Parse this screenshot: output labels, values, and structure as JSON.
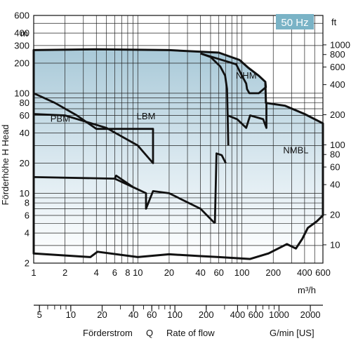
{
  "chart_data": {
    "type": "area",
    "title": "",
    "badge": "50 Hz",
    "x_scale": "log",
    "y_scale": "log",
    "xlim": [
      1,
      600
    ],
    "ylim": [
      2,
      600
    ],
    "x_unit": "m³/h",
    "y_unit_left": "m",
    "y_unit_right": "ft",
    "y_label_left": "Förderhöhe   H   Head",
    "bottom_caption": {
      "left": "Förderstrom",
      "q": "Q",
      "rate": "Rate of flow",
      "gmin": "G/min [US]"
    },
    "x_ticks": [
      1,
      2,
      4,
      6,
      8,
      10,
      20,
      40,
      60,
      100,
      200,
      400,
      600
    ],
    "x_tick_labels": [
      "1",
      "2",
      "4",
      "6",
      "8",
      "10",
      "20",
      "40",
      "60",
      "100",
      "200",
      "400",
      "600"
    ],
    "y_ticks_left": [
      2,
      4,
      6,
      8,
      10,
      20,
      40,
      60,
      80,
      100,
      200,
      300,
      400,
      600
    ],
    "y_tick_labels_left": [
      "2",
      "4",
      "6",
      "8",
      "10",
      "20",
      "40",
      "60",
      "80",
      "100",
      "200",
      "300",
      "400",
      "600"
    ],
    "y_ticks_right_ft": [
      10,
      20,
      40,
      60,
      80,
      100,
      200,
      400,
      600,
      800,
      1000
    ],
    "y_tick_labels_right": [
      "10",
      "20",
      "40",
      "60",
      "80",
      "100",
      "200",
      "400",
      "600",
      "800",
      "1000"
    ],
    "gmin_ticks": [
      5,
      10,
      20,
      40,
      60,
      100,
      200,
      400,
      600,
      1000,
      2000
    ],
    "gmin_tick_labels": [
      "5",
      "10",
      "20",
      "40",
      "60",
      "100",
      "200",
      "400",
      "600",
      "1000",
      "2000"
    ],
    "regions": [
      {
        "label": "NMBL",
        "label_pos": [
          330,
          25
        ]
      },
      {
        "label": "NHM",
        "label_pos": [
          110,
          140
        ]
      },
      {
        "label": "LBM",
        "label_pos": [
          12,
          55
        ]
      },
      {
        "label": "PBM",
        "label_pos": [
          1.8,
          52
        ]
      }
    ],
    "envelope": {
      "upper": [
        [
          1,
          270
        ],
        [
          4,
          275
        ],
        [
          20,
          270
        ],
        [
          60,
          255
        ],
        [
          95,
          215
        ],
        [
          115,
          180
        ],
        [
          145,
          150
        ],
        [
          168,
          130
        ],
        [
          170,
          80
        ],
        [
          260,
          75
        ],
        [
          400,
          62
        ],
        [
          600,
          50
        ]
      ],
      "lower": [
        [
          1,
          2.5
        ],
        [
          3.5,
          2.3
        ],
        [
          4.1,
          2.6
        ],
        [
          10,
          2.3
        ],
        [
          20,
          2.45
        ],
        [
          40,
          2.35
        ],
        [
          60,
          2.3
        ],
        [
          120,
          2.2
        ],
        [
          180,
          2.5
        ],
        [
          270,
          3.1
        ],
        [
          330,
          2.8
        ],
        [
          380,
          3.5
        ],
        [
          430,
          4.5
        ],
        [
          520,
          5.2
        ],
        [
          600,
          6
        ]
      ]
    },
    "boundary_lines": [
      {
        "name": "PBM",
        "points": [
          [
            1,
            100
          ],
          [
            1.6,
            80
          ],
          [
            2.6,
            60
          ],
          [
            4,
            44
          ],
          [
            14,
            44
          ],
          [
            14,
            20
          ],
          [
            10,
            30
          ],
          [
            5,
            45
          ],
          [
            2,
            60
          ],
          [
            1,
            62
          ]
        ]
      },
      {
        "name": "LBM upper",
        "points": [
          [
            40,
            250
          ],
          [
            50,
            230
          ],
          [
            62,
            185
          ],
          [
            69,
            150
          ],
          [
            72,
            110
          ],
          [
            73,
            60
          ],
          [
            74,
            30
          ]
        ]
      },
      {
        "name": "LBM lower",
        "points": [
          [
            1,
            14.5
          ],
          [
            6,
            14
          ],
          [
            9,
            11.5
          ],
          [
            12,
            10
          ],
          [
            12,
            7
          ],
          [
            14,
            10.5
          ],
          [
            20,
            10
          ],
          [
            40,
            7
          ],
          [
            55,
            5
          ]
        ]
      },
      {
        "name": "LBM lower step 2",
        "points": [
          [
            6,
            14
          ],
          [
            6.2,
            15
          ],
          [
            9,
            11.5
          ]
        ]
      },
      {
        "name": "NHM outline",
        "points": [
          [
            40,
            250
          ],
          [
            88,
            195
          ],
          [
            100,
            150
          ],
          [
            110,
            125
          ],
          [
            112,
            110
          ],
          [
            118,
            100
          ],
          [
            145,
            100
          ],
          [
            170,
            115
          ],
          [
            168,
            130
          ]
        ]
      },
      {
        "name": "NMBL notch",
        "points": [
          [
            73,
            60
          ],
          [
            90,
            55
          ],
          [
            110,
            45
          ],
          [
            120,
            60
          ],
          [
            160,
            55
          ],
          [
            172,
            45
          ],
          [
            172,
            80
          ]
        ]
      },
      {
        "name": "Lower right step",
        "points": [
          [
            55,
            5
          ],
          [
            57,
            25
          ],
          [
            64,
            24
          ],
          [
            70,
            20
          ]
        ]
      }
    ],
    "gridlines": true,
    "legend": "none"
  }
}
